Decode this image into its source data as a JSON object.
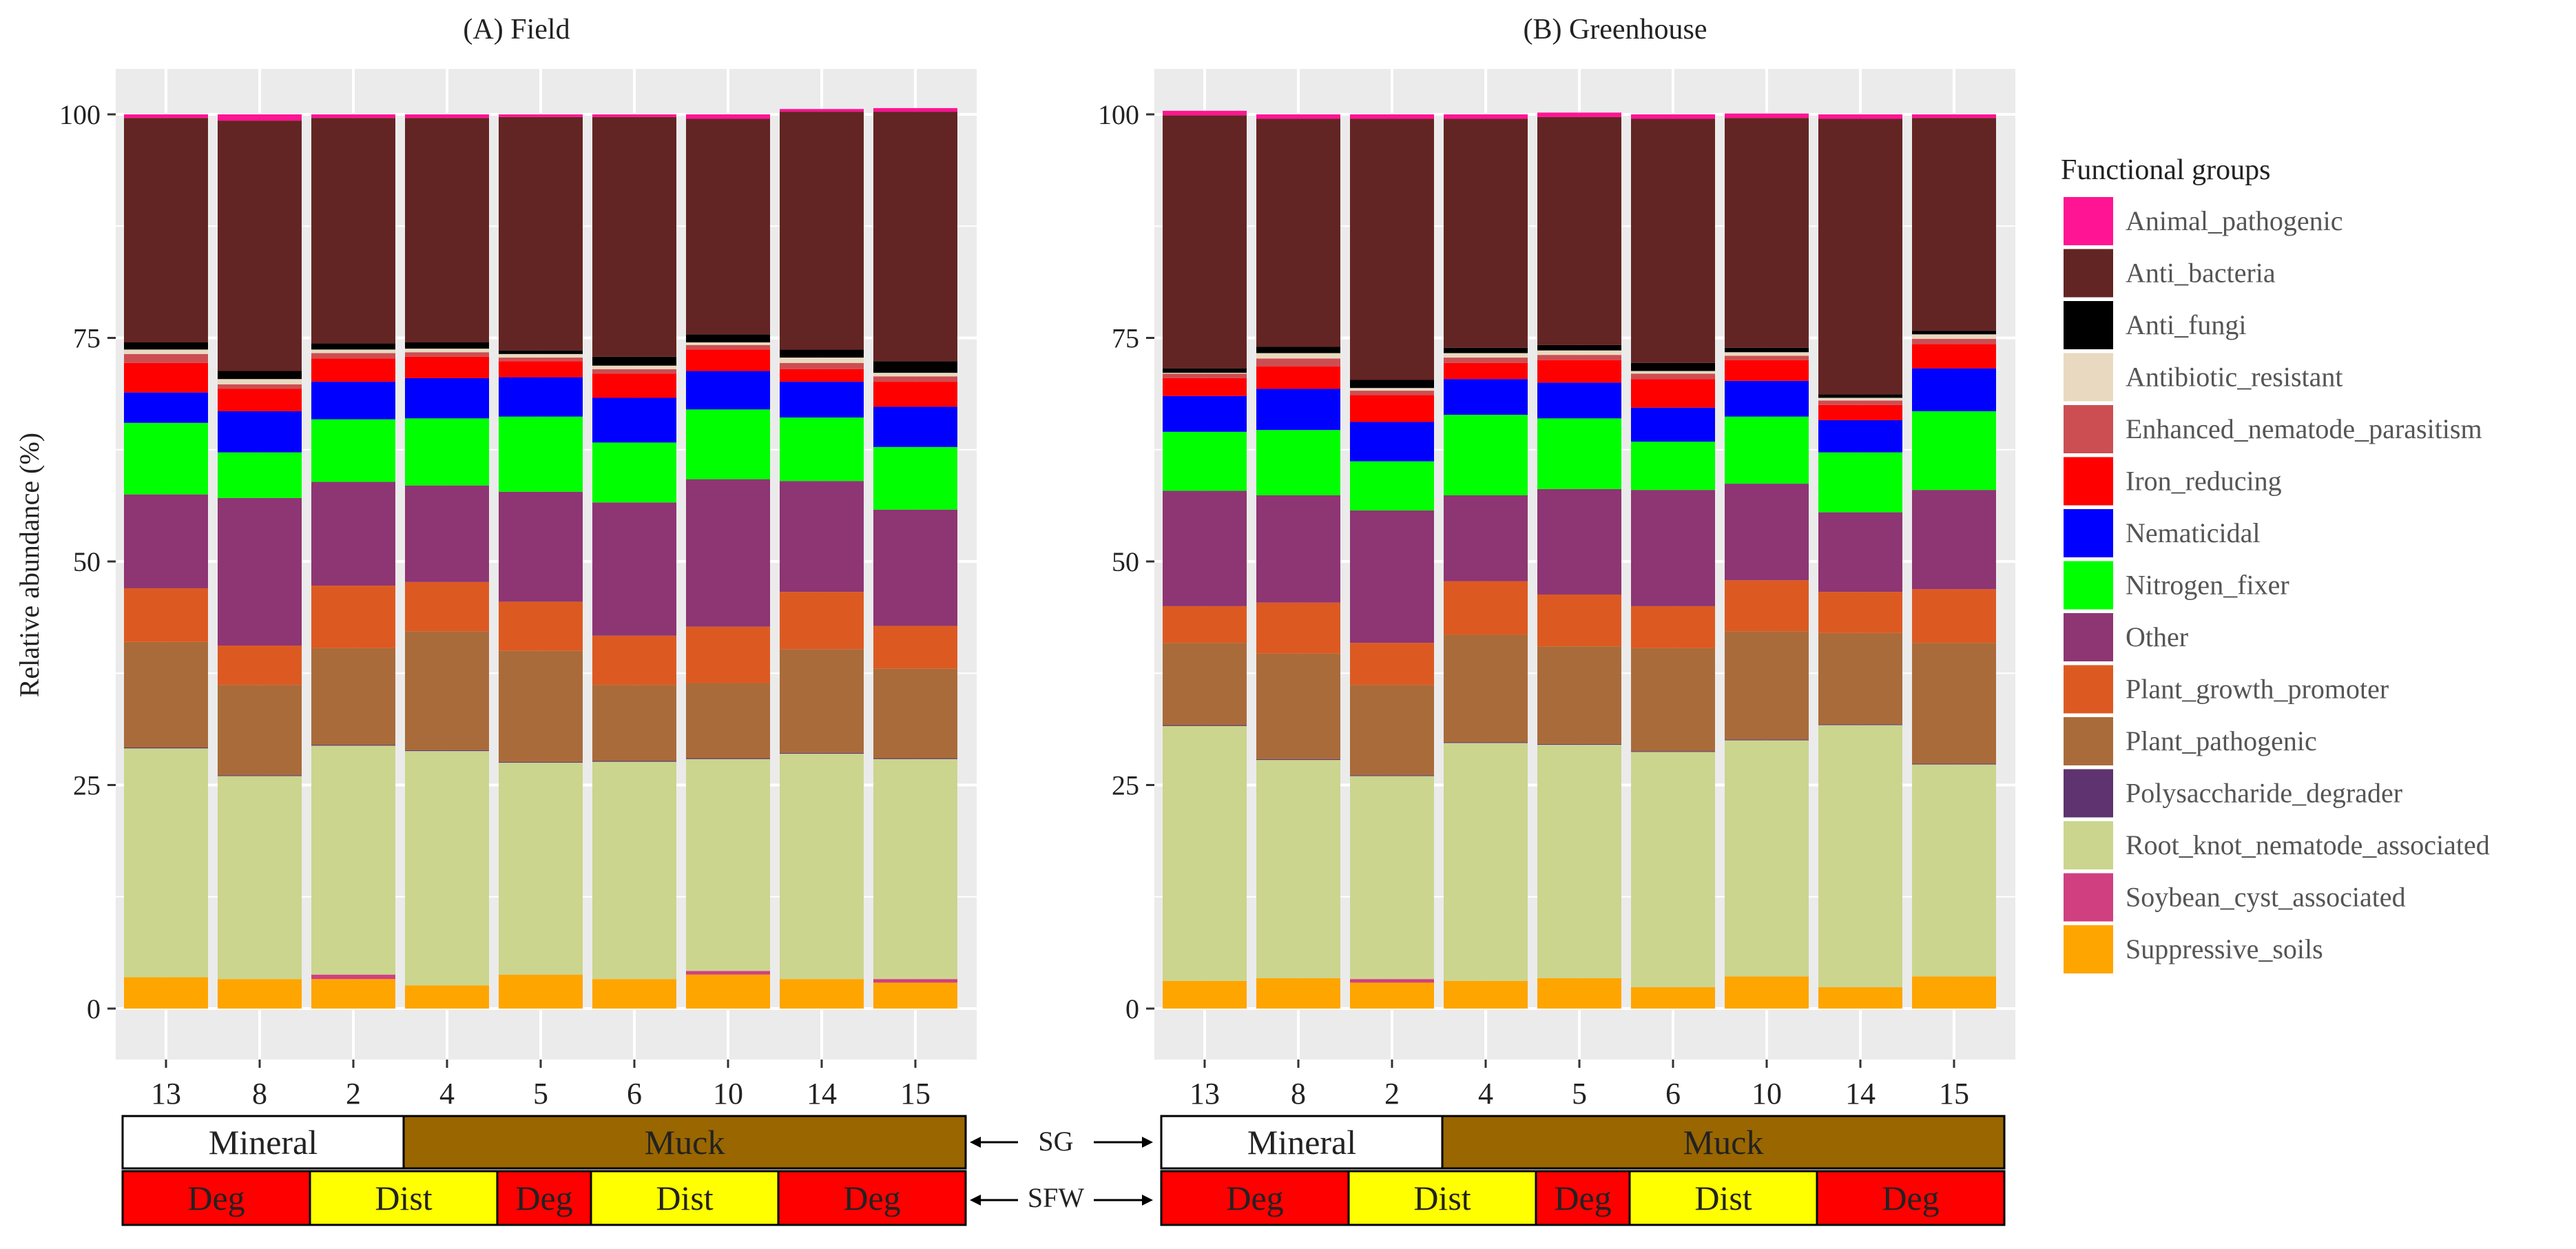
{
  "chart_data": [
    {
      "type": "bar",
      "stacked": true,
      "title": "(A) Field",
      "ylabel": "Relative abundance (%)",
      "xlabel": "",
      "ylim": [
        0,
        100
      ],
      "yticks": [
        "0",
        "25",
        "50",
        "75",
        "100"
      ],
      "categories": [
        "13",
        "8",
        "2",
        "4",
        "5",
        "6",
        "10",
        "14",
        "15"
      ],
      "series": [
        {
          "name": "Suppressive_soils",
          "values": [
            3.5,
            3.3,
            3.3,
            2.6,
            3.8,
            3.3,
            3.8,
            3.3,
            2.9
          ]
        },
        {
          "name": "Soybean_cyst_associated",
          "values": [
            0.0,
            0.0,
            0.5,
            0.0,
            0.0,
            0.0,
            0.4,
            0.0,
            0.4
          ]
        },
        {
          "name": "Root_knot_nematode_associated",
          "values": [
            25.6,
            22.7,
            25.6,
            26.2,
            23.7,
            24.3,
            23.7,
            25.2,
            24.6
          ]
        },
        {
          "name": "Polysaccharide_degrader",
          "values": [
            0.1,
            0.1,
            0.1,
            0.1,
            0.1,
            0.1,
            0.1,
            0.1,
            0.1
          ]
        },
        {
          "name": "Plant_pathogenic",
          "values": [
            11.8,
            10.1,
            10.8,
            13.3,
            12.4,
            8.5,
            8.4,
            11.6,
            10.0
          ]
        },
        {
          "name": "Plant_growth_promoter",
          "values": [
            6.0,
            4.4,
            7.0,
            5.5,
            5.5,
            5.5,
            6.3,
            6.4,
            4.8
          ]
        },
        {
          "name": "Other",
          "values": [
            10.5,
            16.5,
            11.6,
            10.8,
            12.3,
            14.9,
            16.5,
            12.4,
            13.0
          ]
        },
        {
          "name": "Nitrogen_fixer",
          "values": [
            8.0,
            5.1,
            7.0,
            7.5,
            8.4,
            6.7,
            7.8,
            7.1,
            7.0
          ]
        },
        {
          "name": "Nematicidal",
          "values": [
            3.4,
            4.6,
            4.2,
            4.5,
            4.4,
            5.0,
            4.3,
            4.0,
            4.5
          ]
        },
        {
          "name": "Iron_reducing",
          "values": [
            3.3,
            2.5,
            2.6,
            2.4,
            1.8,
            2.7,
            2.4,
            1.4,
            2.8
          ]
        },
        {
          "name": "Enhanced_nematode_parasitism",
          "values": [
            1.0,
            0.5,
            0.6,
            0.5,
            0.4,
            0.5,
            0.5,
            0.7,
            0.6
          ]
        },
        {
          "name": "Antibiotic_resistant",
          "values": [
            0.5,
            0.6,
            0.4,
            0.4,
            0.4,
            0.4,
            0.3,
            0.6,
            0.4
          ]
        },
        {
          "name": "Anti_fungi",
          "values": [
            0.8,
            0.9,
            0.7,
            0.7,
            0.4,
            1.0,
            0.9,
            0.9,
            1.3
          ]
        },
        {
          "name": "Anti_bacteria",
          "values": [
            25.1,
            28.0,
            25.2,
            25.1,
            26.1,
            26.8,
            24.1,
            26.6,
            27.9
          ]
        },
        {
          "name": "Animal_pathogenic",
          "values": [
            0.4,
            0.7,
            0.4,
            0.4,
            0.3,
            0.3,
            0.5,
            0.3,
            0.4
          ]
        }
      ]
    },
    {
      "type": "bar",
      "stacked": true,
      "title": "(B) Greenhouse",
      "ylabel": "",
      "xlabel": "",
      "ylim": [
        0,
        100
      ],
      "yticks": [
        "0",
        "25",
        "50",
        "75",
        "100"
      ],
      "categories": [
        "13",
        "8",
        "2",
        "4",
        "5",
        "6",
        "10",
        "14",
        "15"
      ],
      "series": [
        {
          "name": "Suppressive_soils",
          "values": [
            3.1,
            3.4,
            2.9,
            3.1,
            3.4,
            2.4,
            3.6,
            2.4,
            3.6
          ]
        },
        {
          "name": "Soybean_cyst_associated",
          "values": [
            0.0,
            0.0,
            0.4,
            0.0,
            0.0,
            0.0,
            0.0,
            0.0,
            0.0
          ]
        },
        {
          "name": "Root_knot_nematode_associated",
          "values": [
            28.5,
            24.4,
            22.7,
            26.6,
            26.1,
            26.3,
            26.4,
            29.3,
            23.7
          ]
        },
        {
          "name": "Polysaccharide_degrader",
          "values": [
            0.1,
            0.1,
            0.1,
            0.1,
            0.1,
            0.1,
            0.1,
            0.1,
            0.1
          ]
        },
        {
          "name": "Plant_pathogenic",
          "values": [
            9.2,
            11.8,
            10.1,
            12.0,
            10.9,
            11.5,
            12.1,
            10.2,
            13.5
          ]
        },
        {
          "name": "Plant_growth_promoter",
          "values": [
            4.1,
            5.7,
            4.7,
            6.0,
            5.8,
            4.7,
            5.7,
            4.6,
            6.0
          ]
        },
        {
          "name": "Other",
          "values": [
            12.9,
            12.0,
            14.8,
            9.6,
            11.8,
            13.0,
            10.8,
            8.9,
            11.1
          ]
        },
        {
          "name": "Nitrogen_fixer",
          "values": [
            6.6,
            7.3,
            5.5,
            9.0,
            7.9,
            5.4,
            7.5,
            6.7,
            8.8
          ]
        },
        {
          "name": "Nematicidal",
          "values": [
            4.0,
            4.6,
            4.4,
            4.0,
            4.0,
            3.8,
            4.0,
            3.6,
            4.8
          ]
        },
        {
          "name": "Iron_reducing",
          "values": [
            2.0,
            2.5,
            3.0,
            1.8,
            2.5,
            3.2,
            2.3,
            1.7,
            2.7
          ]
        },
        {
          "name": "Enhanced_nematode_parasitism",
          "values": [
            0.5,
            0.9,
            0.5,
            0.6,
            0.6,
            0.6,
            0.5,
            0.5,
            0.6
          ]
        },
        {
          "name": "Antibiotic_resistant",
          "values": [
            0.1,
            0.6,
            0.3,
            0.5,
            0.5,
            0.3,
            0.4,
            0.3,
            0.5
          ]
        },
        {
          "name": "Anti_fungi",
          "values": [
            0.5,
            0.7,
            0.9,
            0.6,
            0.6,
            0.9,
            0.5,
            0.4,
            0.4
          ]
        },
        {
          "name": "Anti_bacteria",
          "values": [
            28.3,
            25.5,
            29.2,
            25.6,
            25.5,
            27.3,
            25.7,
            30.8,
            23.8
          ]
        },
        {
          "name": "Animal_pathogenic",
          "values": [
            0.5,
            0.5,
            0.5,
            0.5,
            0.5,
            0.5,
            0.5,
            0.5,
            0.4
          ]
        }
      ]
    }
  ],
  "legend": {
    "title": "Functional groups",
    "items": [
      {
        "name": "Animal_pathogenic",
        "color": "#FF1493"
      },
      {
        "name": "Anti_bacteria",
        "color": "#632523"
      },
      {
        "name": "Anti_fungi",
        "color": "#000000"
      },
      {
        "name": "Antibiotic_resistant",
        "color": "#E8D9C0"
      },
      {
        "name": "Enhanced_nematode_parasitism",
        "color": "#CD4E52"
      },
      {
        "name": "Iron_reducing",
        "color": "#FF0000"
      },
      {
        "name": "Nematicidal",
        "color": "#0000FF"
      },
      {
        "name": "Nitrogen_fixer",
        "color": "#00FF00"
      },
      {
        "name": "Other",
        "color": "#8E3573"
      },
      {
        "name": "Plant_growth_promoter",
        "color": "#DC5A22"
      },
      {
        "name": "Plant_pathogenic",
        "color": "#AA6B3A"
      },
      {
        "name": "Polysaccharide_degrader",
        "color": "#5E3370"
      },
      {
        "name": "Root_knot_nematode_associated",
        "color": "#CBD58E"
      },
      {
        "name": "Soybean_cyst_associated",
        "color": "#D04080"
      },
      {
        "name": "Suppressive_soils",
        "color": "#FFA500"
      }
    ]
  },
  "annotations": {
    "sg_label": "SG",
    "sfw_label": "SFW",
    "sg_row": [
      {
        "label": "Mineral",
        "from": "13",
        "to": "2",
        "color": "#FFFFFF"
      },
      {
        "label": "Muck",
        "from": "4",
        "to": "15",
        "color": "#996600"
      }
    ],
    "sfw_row": [
      {
        "label": "Deg",
        "from": "13",
        "to": "8",
        "color": "#FF0000"
      },
      {
        "label": "Dist",
        "from": "2",
        "to": "4",
        "color": "#FFFF00"
      },
      {
        "label": "Deg",
        "from": "5",
        "to": "5",
        "color": "#FF0000"
      },
      {
        "label": "Dist",
        "from": "6",
        "to": "10",
        "color": "#FFFF00"
      },
      {
        "label": "Deg",
        "from": "14",
        "to": "15",
        "color": "#FF0000"
      }
    ]
  },
  "colors": {
    "panel_bg": "#EBEBEB",
    "grid": "#FFFFFF",
    "text": "#222222",
    "legend_text": "#555555"
  }
}
